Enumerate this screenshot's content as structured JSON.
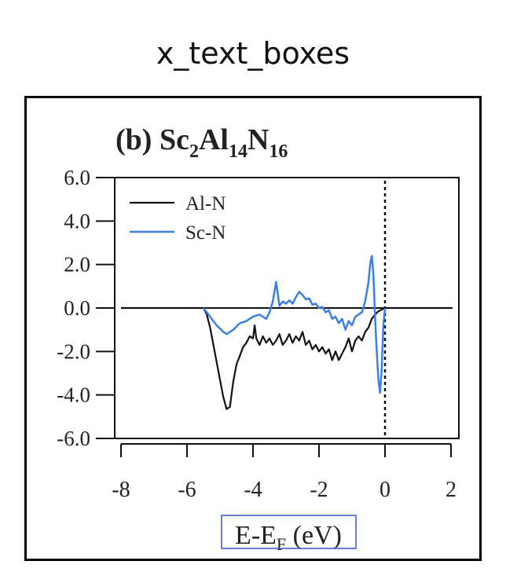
{
  "header": {
    "label": "x_text_boxes"
  },
  "chart_data": {
    "type": "line",
    "title": {
      "prefix": "(b) ",
      "formula": [
        {
          "t": "Sc",
          "sub": false
        },
        {
          "t": "2",
          "sub": true
        },
        {
          "t": "Al",
          "sub": false
        },
        {
          "t": "14",
          "sub": true
        },
        {
          "t": "N",
          "sub": false
        },
        {
          "t": "16",
          "sub": true
        }
      ]
    },
    "xlabel": {
      "main": "E-E",
      "sub": "F",
      "unit": " (eV)"
    },
    "ylabel": "",
    "xlim": [
      -8,
      2
    ],
    "ylim": [
      -6,
      6
    ],
    "x_ticks": [
      -8,
      -6,
      -4,
      -2,
      0,
      2
    ],
    "x_tick_labels": [
      "-8",
      "-6",
      "-4",
      "-2",
      "0",
      "2"
    ],
    "y_ticks": [
      6,
      4,
      2,
      0,
      -2,
      -4,
      -6
    ],
    "y_tick_labels": [
      "6.0",
      "4.0",
      "2.0",
      "0.0",
      "-2.0",
      "-4.0",
      "-6.0"
    ],
    "legend_position": "top-left",
    "fermi_level": 0,
    "colors": {
      "al_n": "#111111",
      "sc_n": "#3a7fe8",
      "highlight_box": "#3355cc"
    },
    "series": [
      {
        "name": "Al-N",
        "points": [
          [
            -8.0,
            0
          ],
          [
            -5.5,
            0
          ],
          [
            -5.4,
            -0.3
          ],
          [
            -5.3,
            -0.9
          ],
          [
            -5.2,
            -1.7
          ],
          [
            -5.1,
            -2.5
          ],
          [
            -5.0,
            -3.3
          ],
          [
            -4.9,
            -4.1
          ],
          [
            -4.8,
            -4.65
          ],
          [
            -4.7,
            -4.55
          ],
          [
            -4.6,
            -3.4
          ],
          [
            -4.5,
            -2.6
          ],
          [
            -4.4,
            -2.2
          ],
          [
            -4.3,
            -1.8
          ],
          [
            -4.2,
            -1.6
          ],
          [
            -4.1,
            -1.3
          ],
          [
            -4.0,
            -1.4
          ],
          [
            -3.95,
            -0.8
          ],
          [
            -3.9,
            -1.4
          ],
          [
            -3.8,
            -1.7
          ],
          [
            -3.7,
            -1.3
          ],
          [
            -3.6,
            -1.6
          ],
          [
            -3.5,
            -1.4
          ],
          [
            -3.4,
            -1.7
          ],
          [
            -3.3,
            -1.5
          ],
          [
            -3.2,
            -1.2
          ],
          [
            -3.1,
            -1.7
          ],
          [
            -3.0,
            -1.5
          ],
          [
            -2.9,
            -1.2
          ],
          [
            -2.8,
            -1.6
          ],
          [
            -2.7,
            -1.3
          ],
          [
            -2.6,
            -1.5
          ],
          [
            -2.5,
            -1.1
          ],
          [
            -2.4,
            -1.7
          ],
          [
            -2.3,
            -1.5
          ],
          [
            -2.2,
            -1.9
          ],
          [
            -2.1,
            -1.7
          ],
          [
            -2.0,
            -2.0
          ],
          [
            -1.9,
            -1.8
          ],
          [
            -1.8,
            -2.1
          ],
          [
            -1.7,
            -1.9
          ],
          [
            -1.6,
            -2.4
          ],
          [
            -1.5,
            -2.0
          ],
          [
            -1.4,
            -2.4
          ],
          [
            -1.3,
            -2.1
          ],
          [
            -1.2,
            -1.8
          ],
          [
            -1.1,
            -1.4
          ],
          [
            -1.0,
            -2.0
          ],
          [
            -0.9,
            -1.5
          ],
          [
            -0.8,
            -1.3
          ],
          [
            -0.7,
            -1.5
          ],
          [
            -0.6,
            -1.1
          ],
          [
            -0.5,
            -0.9
          ],
          [
            -0.4,
            -0.5
          ],
          [
            -0.3,
            -0.3
          ],
          [
            -0.2,
            -0.15
          ],
          [
            0.0,
            0
          ],
          [
            2.0,
            0
          ]
        ]
      },
      {
        "name": "Sc-N",
        "points": [
          [
            -5.5,
            0
          ],
          [
            -5.3,
            -0.4
          ],
          [
            -5.1,
            -0.8
          ],
          [
            -4.9,
            -1.1
          ],
          [
            -4.8,
            -1.2
          ],
          [
            -4.6,
            -1.0
          ],
          [
            -4.4,
            -0.7
          ],
          [
            -4.2,
            -0.6
          ],
          [
            -4.0,
            -0.4
          ],
          [
            -3.8,
            -0.3
          ],
          [
            -3.6,
            -0.5
          ],
          [
            -3.5,
            -0.2
          ],
          [
            -3.4,
            0.3
          ],
          [
            -3.3,
            1.2
          ],
          [
            -3.2,
            0.1
          ],
          [
            -3.1,
            0.3
          ],
          [
            -3.0,
            0.2
          ],
          [
            -2.9,
            0.35
          ],
          [
            -2.8,
            0.2
          ],
          [
            -2.7,
            0.5
          ],
          [
            -2.6,
            0.75
          ],
          [
            -2.5,
            0.6
          ],
          [
            -2.4,
            0.4
          ],
          [
            -2.3,
            0.45
          ],
          [
            -2.2,
            0.15
          ],
          [
            -2.1,
            0.2
          ],
          [
            -2.0,
            0.0
          ],
          [
            -1.9,
            0.05
          ],
          [
            -1.8,
            -0.2
          ],
          [
            -1.7,
            -0.1
          ],
          [
            -1.6,
            -0.5
          ],
          [
            -1.5,
            -0.4
          ],
          [
            -1.4,
            -0.7
          ],
          [
            -1.3,
            -0.5
          ],
          [
            -1.2,
            -1.0
          ],
          [
            -1.1,
            -0.6
          ],
          [
            -1.0,
            -0.8
          ],
          [
            -0.9,
            -0.4
          ],
          [
            -0.8,
            -0.3
          ],
          [
            -0.7,
            -0.2
          ],
          [
            -0.6,
            0.3
          ],
          [
            -0.5,
            1.2
          ],
          [
            -0.45,
            2.0
          ],
          [
            -0.4,
            2.4
          ],
          [
            -0.35,
            1.5
          ],
          [
            -0.3,
            -0.5
          ],
          [
            -0.25,
            -2.0
          ],
          [
            -0.2,
            -3.3
          ],
          [
            -0.15,
            -3.9
          ],
          [
            -0.1,
            -2.8
          ],
          [
            -0.05,
            -0.8
          ],
          [
            0.0,
            0
          ]
        ]
      }
    ]
  }
}
